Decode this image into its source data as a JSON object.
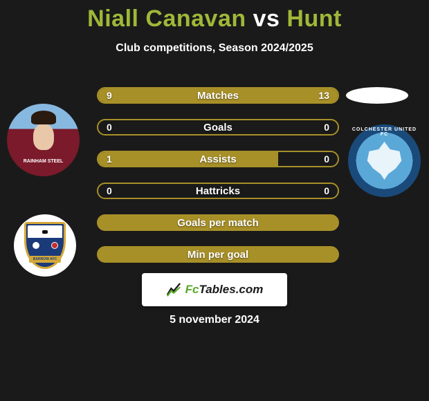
{
  "title": {
    "player1": "Niall Canavan",
    "vs": "vs",
    "player2": "Hunt"
  },
  "subtitle": "Club competitions, Season 2024/2025",
  "player1": {
    "avatar_jersey_text": "RAINHAM STEEL",
    "crest_banner": "BARROW AFC",
    "crest_colors": {
      "shield": "#1a3a7a",
      "trim": "#d4a838",
      "bg": "#ffffff"
    }
  },
  "player2": {
    "avatar_bg": "#ffffff",
    "crest_ring_text": "COLCHESTER UNITED FC",
    "crest_colors": {
      "inner": "#5aa8d8",
      "ring": "#1a4a7a",
      "eagle": "#e8f4fa"
    }
  },
  "bars": {
    "border_color": "#a89028",
    "fill_color": "#a89028",
    "text_color": "#ffffff",
    "rows": [
      {
        "label": "Matches",
        "left_val": "9",
        "right_val": "13",
        "left_pct": 41,
        "right_pct": 59
      },
      {
        "label": "Goals",
        "left_val": "0",
        "right_val": "0",
        "left_pct": 0,
        "right_pct": 0
      },
      {
        "label": "Assists",
        "left_val": "1",
        "right_val": "0",
        "left_pct": 75,
        "right_pct": 0
      },
      {
        "label": "Hattricks",
        "left_val": "0",
        "right_val": "0",
        "left_pct": 0,
        "right_pct": 0
      },
      {
        "label": "Goals per match",
        "left_val": "",
        "right_val": "",
        "left_pct": 100,
        "right_pct": 0,
        "full": true
      },
      {
        "label": "Min per goal",
        "left_val": "",
        "right_val": "",
        "left_pct": 100,
        "right_pct": 0,
        "full": true
      }
    ]
  },
  "footer": {
    "brand_prefix": "Fc",
    "brand_suffix": "Tables.com"
  },
  "date": "5 november 2024",
  "colors": {
    "bg": "#1a1a1a",
    "accent_green": "#9fb838",
    "white": "#ffffff"
  }
}
